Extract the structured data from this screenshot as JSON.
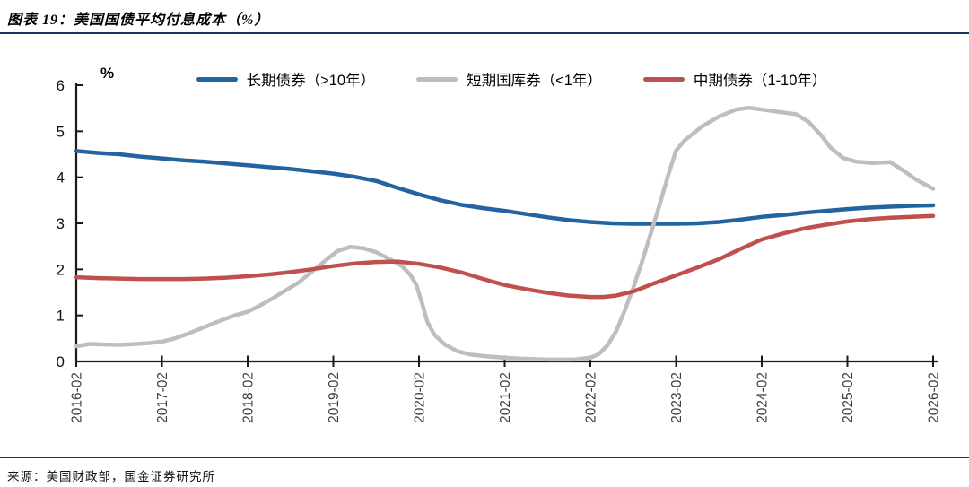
{
  "header": {
    "title": "图表 19：美国国债平均付息成本（%）"
  },
  "footer": {
    "source": "来源：美国财政部，国金证券研究所"
  },
  "chart_data": {
    "type": "line",
    "title": "美国国债平均付息成本",
    "unit_label": "%",
    "ylim": [
      0,
      6
    ],
    "y_ticks": [
      0,
      1,
      2,
      3,
      4,
      5,
      6
    ],
    "x_tick_labels": [
      "2016-02",
      "2017-02",
      "2018-02",
      "2019-02",
      "2020-02",
      "2021-02",
      "2022-02",
      "2023-02",
      "2024-02",
      "2025-02",
      "2026-02"
    ],
    "x_range_years": [
      0,
      10
    ],
    "grid": false,
    "legend_position": "top",
    "axis_color": "#1a1a1a",
    "x_tick_label_color": "#3f3f3f",
    "y_tick_label_color": "#111111",
    "series": [
      {
        "key": "long-term-bonds",
        "name": "长期债券（>10年）",
        "color": "#2364A0",
        "points": [
          [
            0,
            4.57
          ],
          [
            0.25,
            4.53
          ],
          [
            0.5,
            4.5
          ],
          [
            0.75,
            4.45
          ],
          [
            1,
            4.41
          ],
          [
            1.25,
            4.37
          ],
          [
            1.5,
            4.34
          ],
          [
            1.75,
            4.3
          ],
          [
            2,
            4.26
          ],
          [
            2.25,
            4.22
          ],
          [
            2.5,
            4.18
          ],
          [
            2.75,
            4.13
          ],
          [
            3,
            4.08
          ],
          [
            3.25,
            4.01
          ],
          [
            3.5,
            3.92
          ],
          [
            3.75,
            3.77
          ],
          [
            4,
            3.63
          ],
          [
            4.25,
            3.5
          ],
          [
            4.5,
            3.4
          ],
          [
            4.75,
            3.33
          ],
          [
            5,
            3.27
          ],
          [
            5.25,
            3.2
          ],
          [
            5.5,
            3.13
          ],
          [
            5.75,
            3.07
          ],
          [
            6,
            3.03
          ],
          [
            6.25,
            3.0
          ],
          [
            6.5,
            2.99
          ],
          [
            6.75,
            2.99
          ],
          [
            7,
            2.99
          ],
          [
            7.25,
            3.0
          ],
          [
            7.5,
            3.03
          ],
          [
            7.75,
            3.08
          ],
          [
            8,
            3.14
          ],
          [
            8.25,
            3.18
          ],
          [
            8.5,
            3.23
          ],
          [
            8.75,
            3.27
          ],
          [
            9,
            3.31
          ],
          [
            9.25,
            3.34
          ],
          [
            9.5,
            3.36
          ],
          [
            9.75,
            3.38
          ],
          [
            10,
            3.39
          ]
        ]
      },
      {
        "key": "short-term-bills",
        "name": "短期国库券（<1年）",
        "color": "#BEBEBE",
        "points": [
          [
            0,
            0.33
          ],
          [
            0.15,
            0.38
          ],
          [
            0.3,
            0.37
          ],
          [
            0.5,
            0.36
          ],
          [
            0.7,
            0.38
          ],
          [
            0.85,
            0.4
          ],
          [
            1,
            0.43
          ],
          [
            1.15,
            0.5
          ],
          [
            1.3,
            0.6
          ],
          [
            1.5,
            0.75
          ],
          [
            1.7,
            0.9
          ],
          [
            1.85,
            1.0
          ],
          [
            2,
            1.08
          ],
          [
            2.15,
            1.22
          ],
          [
            2.3,
            1.38
          ],
          [
            2.45,
            1.55
          ],
          [
            2.6,
            1.72
          ],
          [
            2.75,
            1.95
          ],
          [
            2.9,
            2.18
          ],
          [
            3.05,
            2.4
          ],
          [
            3.2,
            2.49
          ],
          [
            3.35,
            2.46
          ],
          [
            3.5,
            2.37
          ],
          [
            3.65,
            2.23
          ],
          [
            3.8,
            2.07
          ],
          [
            3.9,
            1.88
          ],
          [
            3.97,
            1.66
          ],
          [
            4.03,
            1.3
          ],
          [
            4.1,
            0.85
          ],
          [
            4.18,
            0.58
          ],
          [
            4.3,
            0.37
          ],
          [
            4.45,
            0.22
          ],
          [
            4.6,
            0.15
          ],
          [
            4.8,
            0.11
          ],
          [
            5,
            0.08
          ],
          [
            5.2,
            0.06
          ],
          [
            5.5,
            0.04
          ],
          [
            5.8,
            0.04
          ],
          [
            6,
            0.08
          ],
          [
            6.1,
            0.16
          ],
          [
            6.2,
            0.35
          ],
          [
            6.3,
            0.65
          ],
          [
            6.4,
            1.1
          ],
          [
            6.5,
            1.6
          ],
          [
            6.6,
            2.15
          ],
          [
            6.7,
            2.75
          ],
          [
            6.8,
            3.35
          ],
          [
            6.9,
            4.0
          ],
          [
            7,
            4.58
          ],
          [
            7.1,
            4.8
          ],
          [
            7.3,
            5.1
          ],
          [
            7.5,
            5.32
          ],
          [
            7.7,
            5.47
          ],
          [
            7.85,
            5.51
          ],
          [
            8,
            5.47
          ],
          [
            8.2,
            5.42
          ],
          [
            8.4,
            5.37
          ],
          [
            8.55,
            5.2
          ],
          [
            8.7,
            4.9
          ],
          [
            8.8,
            4.65
          ],
          [
            8.95,
            4.42
          ],
          [
            9.1,
            4.34
          ],
          [
            9.3,
            4.31
          ],
          [
            9.5,
            4.33
          ],
          [
            9.65,
            4.15
          ],
          [
            9.8,
            3.95
          ],
          [
            10,
            3.75
          ]
        ]
      },
      {
        "key": "mid-term-bonds",
        "name": "中期债券（1-10年）",
        "color": "#C0504D",
        "points": [
          [
            0,
            1.83
          ],
          [
            0.25,
            1.81
          ],
          [
            0.5,
            1.8
          ],
          [
            0.75,
            1.79
          ],
          [
            1,
            1.79
          ],
          [
            1.25,
            1.79
          ],
          [
            1.5,
            1.8
          ],
          [
            1.75,
            1.82
          ],
          [
            2,
            1.85
          ],
          [
            2.25,
            1.89
          ],
          [
            2.5,
            1.94
          ],
          [
            2.75,
            2.0
          ],
          [
            3,
            2.07
          ],
          [
            3.25,
            2.13
          ],
          [
            3.5,
            2.16
          ],
          [
            3.75,
            2.17
          ],
          [
            4,
            2.12
          ],
          [
            4.25,
            2.04
          ],
          [
            4.5,
            1.93
          ],
          [
            4.75,
            1.79
          ],
          [
            5,
            1.66
          ],
          [
            5.25,
            1.57
          ],
          [
            5.5,
            1.49
          ],
          [
            5.75,
            1.43
          ],
          [
            6,
            1.4
          ],
          [
            6.15,
            1.4
          ],
          [
            6.3,
            1.43
          ],
          [
            6.5,
            1.52
          ],
          [
            6.75,
            1.7
          ],
          [
            7,
            1.87
          ],
          [
            7.25,
            2.04
          ],
          [
            7.5,
            2.22
          ],
          [
            7.75,
            2.44
          ],
          [
            8,
            2.65
          ],
          [
            8.25,
            2.78
          ],
          [
            8.5,
            2.89
          ],
          [
            8.75,
            2.97
          ],
          [
            9,
            3.04
          ],
          [
            9.25,
            3.09
          ],
          [
            9.5,
            3.12
          ],
          [
            9.75,
            3.14
          ],
          [
            10,
            3.16
          ]
        ]
      }
    ]
  }
}
